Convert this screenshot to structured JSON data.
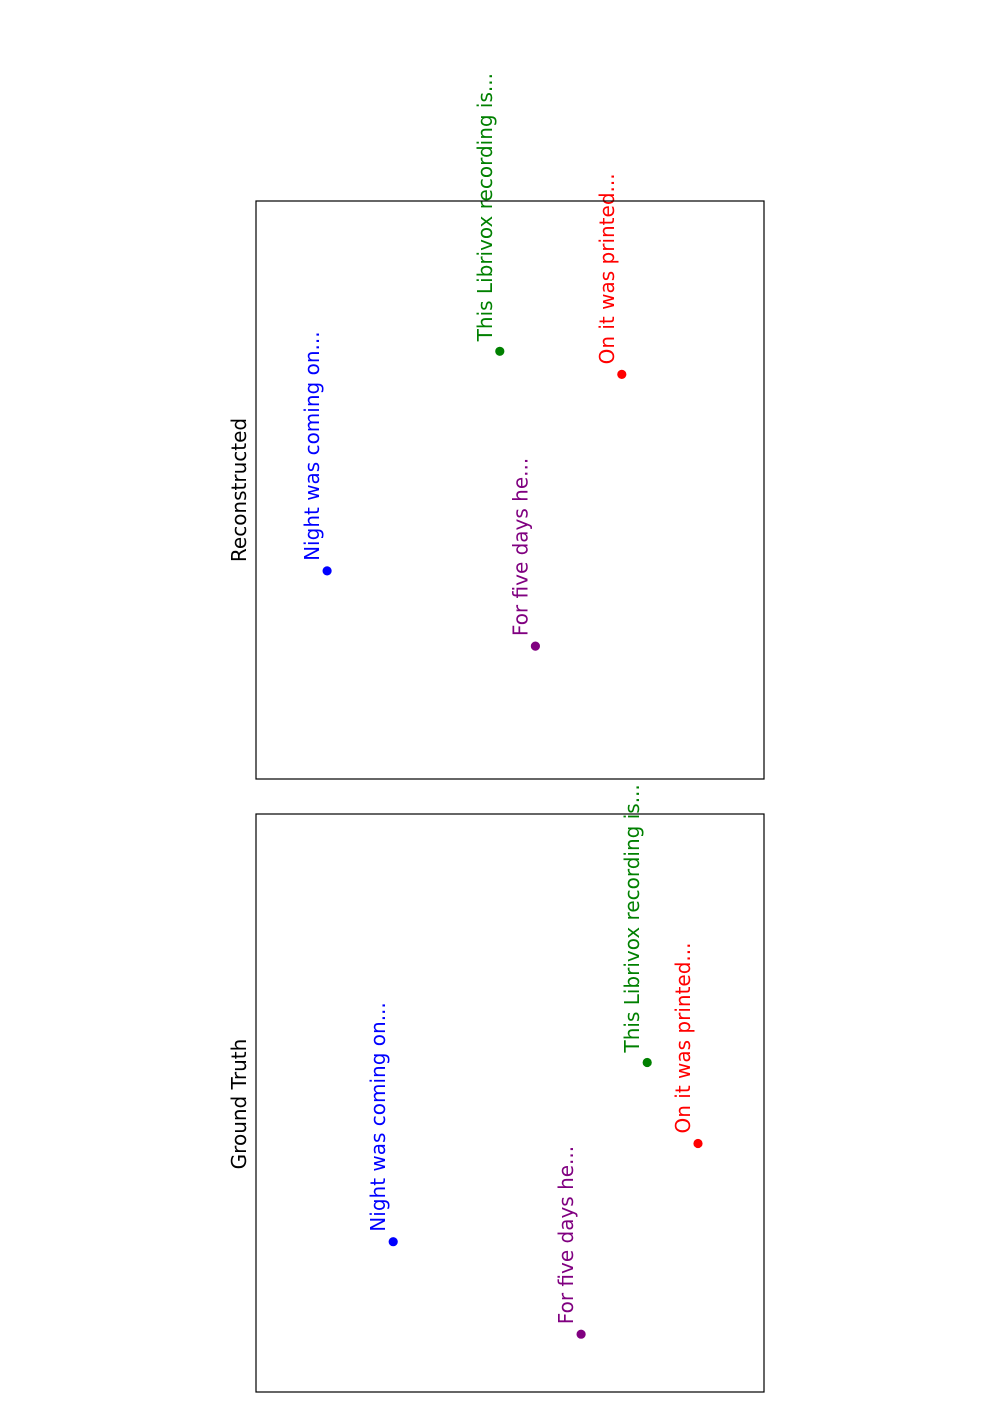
{
  "chart_data": [
    {
      "type": "scatter",
      "title": "Ground Truth",
      "xlabel": "",
      "ylabel": "",
      "grid": false,
      "legend": "none",
      "xlim": [
        0,
        100
      ],
      "ylim": [
        0,
        100
      ],
      "background_color": "#e8858d",
      "background_points": [],
      "highlight_points": [
        {
          "label": "Night was coming on...",
          "x": 26,
          "y": 27,
          "color": "#0000ff"
        },
        {
          "label": "For five days he...",
          "x": 10,
          "y": 64,
          "color": "#800080"
        },
        {
          "label": "This Librivox recording is...",
          "x": 57,
          "y": 77,
          "color": "#008000"
        },
        {
          "label": "On it was printed...",
          "x": 43,
          "y": 87,
          "color": "#ff0000"
        }
      ]
    },
    {
      "type": "scatter",
      "title": "Reconstructed",
      "xlabel": "",
      "ylabel": "",
      "grid": false,
      "legend": "none",
      "xlim": [
        0,
        100
      ],
      "ylim": [
        0,
        100
      ],
      "background_color": "#7fc4cc",
      "background_points": [],
      "highlight_points": [
        {
          "label": "Night was coming on...",
          "x": 36,
          "y": 14,
          "color": "#0000ff"
        },
        {
          "label": "For five days he...",
          "x": 23,
          "y": 55,
          "color": "#800080"
        },
        {
          "label": "This Librivox recording is...",
          "x": 74,
          "y": 48,
          "color": "#008000"
        },
        {
          "label": "On it was printed...",
          "x": 70,
          "y": 72,
          "color": "#ff0000"
        }
      ]
    }
  ]
}
